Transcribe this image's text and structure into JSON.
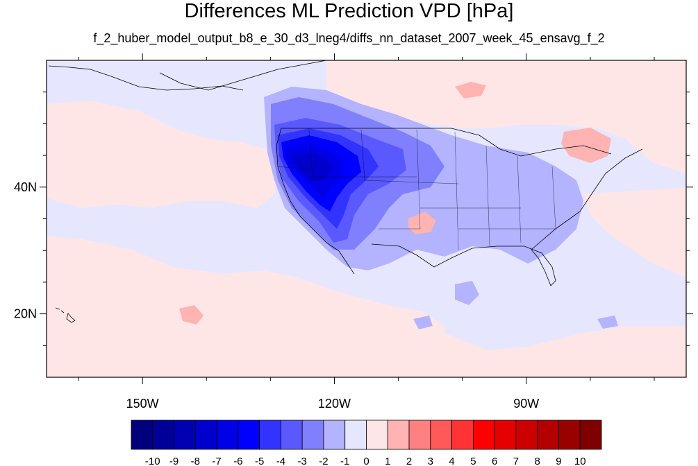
{
  "title": "Differences ML Prediction VPD [hPa]",
  "subtitle": "f_2_huber_model_output_b8_e_30_d3_lneg4/diffs_nn_dataset_2007_week_45_ensavg_f_2",
  "axes": {
    "lon_range": [
      -165,
      -65
    ],
    "lat_range": [
      10,
      60
    ],
    "x_ticks": [
      {
        "value": -150,
        "label": "150W"
      },
      {
        "value": -120,
        "label": "120W"
      },
      {
        "value": -90,
        "label": "90W"
      }
    ],
    "y_ticks": [
      {
        "value": 40,
        "label": "40N"
      },
      {
        "value": 20,
        "label": "20N"
      }
    ]
  },
  "colorbar": {
    "levels": [
      "-10",
      "-9",
      "-8",
      "-7",
      "-6",
      "-5",
      "-4",
      "-3",
      "-2",
      "-1",
      "0",
      "1",
      "2",
      "3",
      "4",
      "5",
      "6",
      "7",
      "8",
      "9",
      "10"
    ],
    "colors": [
      "#00007f",
      "#000099",
      "#0000b3",
      "#0000cc",
      "#0000e6",
      "#0000ff",
      "#3333ff",
      "#5959ff",
      "#8080ff",
      "#b3b3ff",
      "#e6e6ff",
      "#ffe6e6",
      "#ffb3b3",
      "#ff8080",
      "#ff5959",
      "#ff3333",
      "#ff0000",
      "#e60000",
      "#cc0000",
      "#b30000",
      "#990000",
      "#7f0000"
    ]
  },
  "colors": {
    "background_negative": "#e6e6ff",
    "background_positive": "#ffe6e6"
  }
}
